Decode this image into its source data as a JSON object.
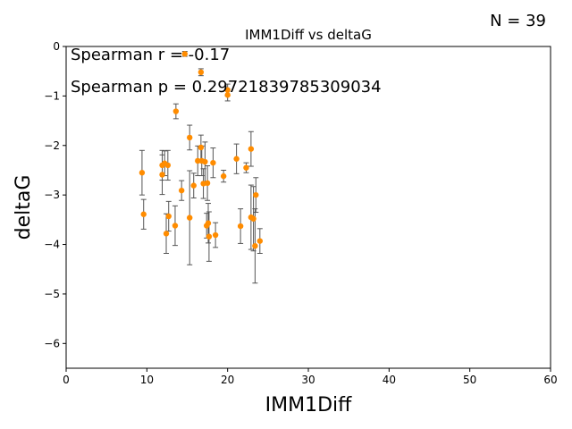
{
  "figure": {
    "n_label": "N = 39"
  },
  "chart_data": {
    "type": "scatter",
    "title": "IMM1Diff vs deltaG",
    "xlabel": "IMM1Diff",
    "ylabel": "deltaG",
    "xlim": [
      0,
      60
    ],
    "ylim": [
      -6.5,
      0
    ],
    "xticks": [
      0,
      10,
      20,
      30,
      40,
      50,
      60
    ],
    "yticks": [
      0,
      -1,
      -2,
      -3,
      -4,
      -5,
      -6
    ],
    "xtick_labels": [
      "0",
      "10",
      "20",
      "30",
      "40",
      "50",
      "60"
    ],
    "ytick_labels": [
      "0",
      "−1",
      "−2",
      "−3",
      "−4",
      "−5",
      "−6"
    ],
    "grid": false,
    "annotations": [
      "Spearman r = -0.17",
      "Spearman p = 0.29721839785309034"
    ],
    "point_color": "#ff8c00",
    "errorbar_color": "#555555",
    "points": [
      {
        "x": 14.7,
        "y": -0.15,
        "err": 0.05
      },
      {
        "x": 16.7,
        "y": -0.52,
        "err": 0.07
      },
      {
        "x": 20.0,
        "y": -0.88,
        "err": 0.12
      },
      {
        "x": 20.0,
        "y": -0.98,
        "err": 0.12
      },
      {
        "x": 13.6,
        "y": -1.31,
        "err": 0.15
      },
      {
        "x": 15.3,
        "y": -1.84,
        "err": 0.25
      },
      {
        "x": 9.4,
        "y": -2.55,
        "err": 0.45
      },
      {
        "x": 9.6,
        "y": -3.39,
        "err": 0.3
      },
      {
        "x": 11.9,
        "y": -2.59,
        "err": 0.4
      },
      {
        "x": 11.9,
        "y": -2.4,
        "err": 0.3
      },
      {
        "x": 12.2,
        "y": -2.36,
        "err": 0.25
      },
      {
        "x": 12.6,
        "y": -2.4,
        "err": 0.3
      },
      {
        "x": 12.4,
        "y": -3.78,
        "err": 0.4
      },
      {
        "x": 12.7,
        "y": -3.43,
        "err": 0.3
      },
      {
        "x": 13.5,
        "y": -3.62,
        "err": 0.4
      },
      {
        "x": 14.3,
        "y": -2.91,
        "err": 0.2
      },
      {
        "x": 15.3,
        "y": -3.46,
        "err": 0.95
      },
      {
        "x": 15.8,
        "y": -2.81,
        "err": 0.25
      },
      {
        "x": 16.3,
        "y": -2.31,
        "err": 0.3
      },
      {
        "x": 16.7,
        "y": -2.04,
        "err": 0.25
      },
      {
        "x": 16.8,
        "y": -2.31,
        "err": 0.3
      },
      {
        "x": 17.0,
        "y": -2.77,
        "err": 0.3
      },
      {
        "x": 17.2,
        "y": -2.33,
        "err": 0.4
      },
      {
        "x": 17.4,
        "y": -3.62,
        "err": 0.25
      },
      {
        "x": 17.5,
        "y": -2.76,
        "err": 0.35
      },
      {
        "x": 17.6,
        "y": -3.57,
        "err": 0.4
      },
      {
        "x": 17.7,
        "y": -3.84,
        "err": 0.5
      },
      {
        "x": 18.2,
        "y": -2.35,
        "err": 0.3
      },
      {
        "x": 18.5,
        "y": -3.81,
        "err": 0.25
      },
      {
        "x": 19.5,
        "y": -2.62,
        "err": 0.12
      },
      {
        "x": 21.1,
        "y": -2.27,
        "err": 0.3
      },
      {
        "x": 21.6,
        "y": -3.63,
        "err": 0.35
      },
      {
        "x": 22.3,
        "y": -2.45,
        "err": 0.1
      },
      {
        "x": 22.9,
        "y": -2.07,
        "err": 0.35
      },
      {
        "x": 22.9,
        "y": -3.45,
        "err": 0.65
      },
      {
        "x": 23.2,
        "y": -3.48,
        "err": 0.65
      },
      {
        "x": 23.4,
        "y": -4.03,
        "err": 0.75
      },
      {
        "x": 23.5,
        "y": -3.0,
        "err": 0.35
      },
      {
        "x": 24.0,
        "y": -3.93,
        "err": 0.25
      }
    ]
  }
}
